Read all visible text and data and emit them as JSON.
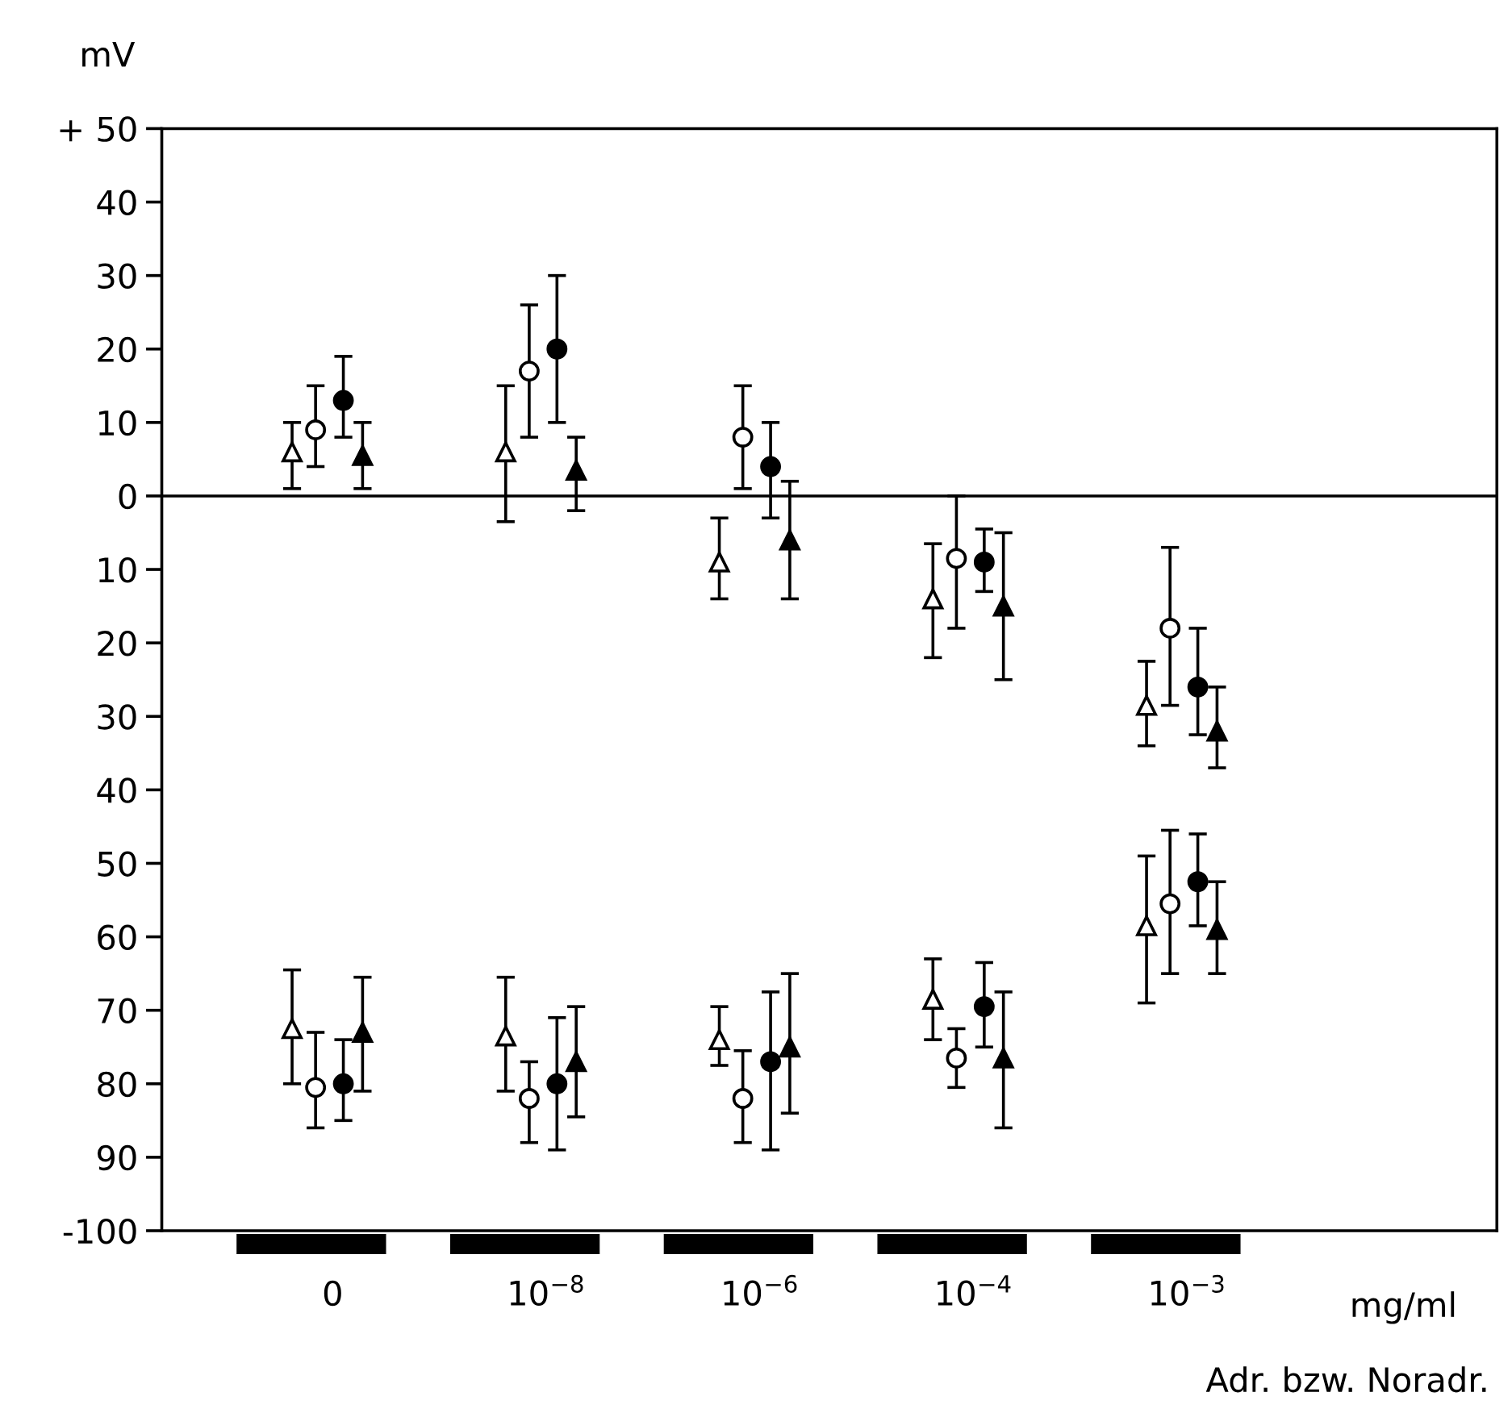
{
  "chart_data": {
    "type": "scatter",
    "ylabel": "mV",
    "xlabel": "mg/ml",
    "annotations": [
      "Adr. bzw. Noradr."
    ],
    "categories": [
      "0",
      "10$^{−8}$",
      "10$^{−6}$",
      "10$^{−4}$",
      "10$^{−3}$"
    ],
    "ylim": [
      -100,
      50
    ],
    "yticks": [
      {
        "value": 50,
        "label": "+ 50"
      },
      40,
      30,
      20,
      10,
      0,
      {
        "value": -10,
        "label": "10"
      },
      {
        "value": -20,
        "label": "20"
      },
      {
        "value": -30,
        "label": "30"
      },
      {
        "value": -40,
        "label": "40"
      },
      {
        "value": -50,
        "label": "50"
      },
      {
        "value": -60,
        "label": "60"
      },
      {
        "value": -70,
        "label": "70"
      },
      {
        "value": -80,
        "label": "80"
      },
      {
        "value": -90,
        "label": "90"
      },
      -100
    ],
    "ref_lines": [
      {
        "axis": "y",
        "value": 0,
        "color": "#000000"
      }
    ],
    "grid": false,
    "series": [
      {
        "color": "#000000",
        "marker": "triangle",
        "values": [
          6,
          6,
          -9,
          -14,
          -28.5
        ],
        "errors": [
          [
            1,
            10
          ],
          [
            -3.5,
            15
          ],
          [
            -14,
            -3
          ],
          [
            -22,
            -6.5
          ],
          [
            -34,
            -22.5
          ]
        ]
      },
      {
        "color": "#000000",
        "marker": "circle",
        "values": [
          9,
          17,
          8,
          -8.5,
          -18
        ],
        "errors": [
          [
            4,
            15
          ],
          [
            8,
            26
          ],
          [
            1,
            15
          ],
          [
            -18,
            0
          ],
          [
            -28.5,
            -7
          ]
        ]
      },
      {
        "color": "#000000",
        "marker": "circle",
        "values": [
          13,
          20,
          4,
          -9,
          -26
        ],
        "errors": [
          [
            8,
            19
          ],
          [
            10,
            30
          ],
          [
            -3,
            10
          ],
          [
            -13,
            -4.5
          ],
          [
            -32.5,
            -18
          ]
        ]
      },
      {
        "color": "#000000",
        "marker": "triangle",
        "values": [
          5.5,
          3.5,
          -6,
          -15,
          -32
        ],
        "errors": [
          [
            1,
            10
          ],
          [
            -2,
            8
          ],
          [
            -14,
            2
          ],
          [
            -25,
            -5
          ],
          [
            -37,
            -26
          ]
        ]
      },
      {
        "color": "#000000",
        "marker": "triangle",
        "values": [
          -72.5,
          -73.5,
          -74,
          -68.5,
          -58.5
        ],
        "errors": [
          [
            -80,
            -64.5
          ],
          [
            -81,
            -65.5
          ],
          [
            -77.5,
            -69.5
          ],
          [
            -74,
            -63
          ],
          [
            -69,
            -49
          ]
        ]
      },
      {
        "color": "#000000",
        "marker": "circle",
        "values": [
          -80.5,
          -82,
          -82,
          -76.5,
          -55.5
        ],
        "errors": [
          [
            -86,
            -73
          ],
          [
            -88,
            -77
          ],
          [
            -88,
            -75.5
          ],
          [
            -80.5,
            -72.5
          ],
          [
            -65,
            -45.5
          ]
        ]
      },
      {
        "color": "#000000",
        "marker": "circle",
        "values": [
          -80,
          -80,
          -77,
          -69.5,
          -52.5
        ],
        "errors": [
          [
            -85,
            -74
          ],
          [
            -89,
            -71
          ],
          [
            -89,
            -67.5
          ],
          [
            -75,
            -63.5
          ],
          [
            -58.5,
            -46
          ]
        ]
      },
      {
        "color": "#000000",
        "marker": "triangle",
        "values": [
          -73,
          -77,
          -75,
          -76.5,
          -59
        ],
        "errors": [
          [
            -81,
            -65.5
          ],
          [
            -84.5,
            -69.5
          ],
          [
            -84,
            -65
          ],
          [
            -86,
            -67.5
          ],
          [
            -65,
            -52.5
          ]
        ]
      }
    ]
  }
}
